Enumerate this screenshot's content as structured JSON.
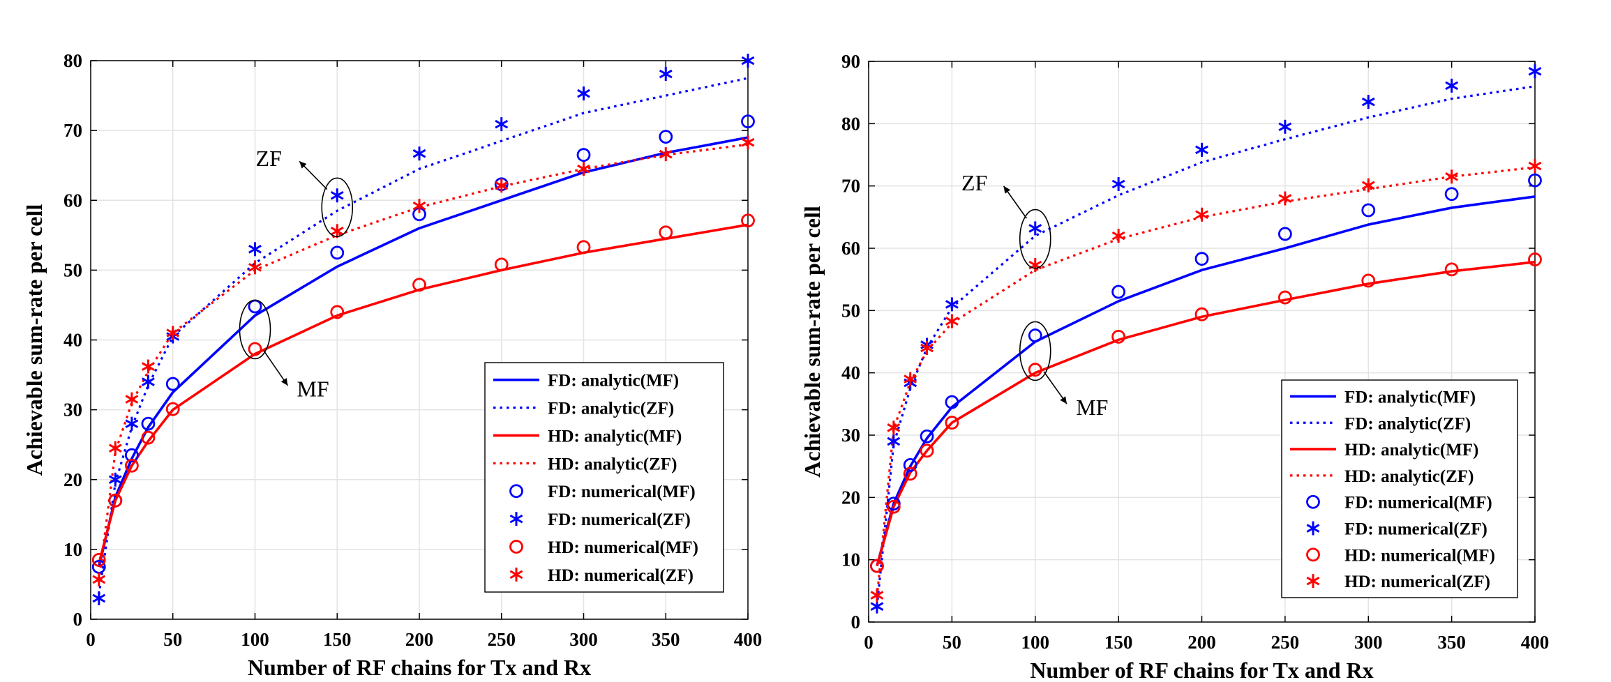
{
  "colors": {
    "fd": "#0000ff",
    "hd": "#ff0000",
    "grid": "#e3e3e3",
    "axis": "#000000"
  },
  "chart_data": [
    {
      "type": "line",
      "xlabel": "Number of RF chains for Tx and Rx",
      "ylabel": "Achievable sum-rate per cell",
      "xlim": [
        0,
        400
      ],
      "ylim": [
        0,
        80
      ],
      "xticks": [
        0,
        50,
        100,
        150,
        200,
        250,
        300,
        350,
        400
      ],
      "yticks": [
        0,
        10,
        20,
        30,
        40,
        50,
        60,
        70,
        80
      ],
      "grid": true,
      "legend_position": "bottom-right",
      "x_curve": [
        5,
        15,
        25,
        35,
        50,
        100,
        150,
        200,
        250,
        300,
        350,
        400
      ],
      "x_markers": [
        5,
        15,
        25,
        35,
        50,
        100,
        150,
        200,
        250,
        300,
        350,
        400
      ],
      "series": [
        {
          "name": "FD: analytic(MF)",
          "kind": "line",
          "dash": "solid",
          "color": "#0000ff",
          "values": [
            7.5,
            17.5,
            23.0,
            27.5,
            32.5,
            43.5,
            50.5,
            56.0,
            60.0,
            64.0,
            66.8,
            69.0
          ]
        },
        {
          "name": "FD: analytic(ZF)",
          "kind": "line",
          "dash": "dotted",
          "color": "#0000ff",
          "values": [
            3.5,
            19.5,
            27.5,
            33.5,
            40.5,
            51.0,
            58.5,
            64.5,
            68.5,
            72.5,
            75.0,
            77.5
          ]
        },
        {
          "name": "HD: analytic(MF)",
          "kind": "line",
          "dash": "solid",
          "color": "#ff0000",
          "values": [
            8.0,
            17.0,
            22.0,
            25.5,
            30.0,
            38.0,
            43.5,
            47.2,
            50.0,
            52.5,
            54.5,
            56.5
          ]
        },
        {
          "name": "HD: analytic(ZF)",
          "kind": "line",
          "dash": "dotted",
          "color": "#ff0000",
          "values": [
            5.5,
            24.0,
            31.0,
            35.5,
            41.0,
            50.0,
            55.0,
            59.0,
            62.0,
            64.5,
            66.5,
            68.0
          ]
        },
        {
          "name": "FD: numerical(MF)",
          "kind": "marker",
          "marker": "circle",
          "color": "#0000ff",
          "values": [
            7.5,
            17.0,
            23.5,
            28.0,
            33.7,
            44.8,
            52.5,
            58.0,
            62.3,
            66.5,
            69.1,
            71.3
          ]
        },
        {
          "name": "FD: numerical(ZF)",
          "kind": "marker",
          "marker": "star",
          "color": "#0000ff",
          "values": [
            3.0,
            20.0,
            28.0,
            34.0,
            40.5,
            53.0,
            60.7,
            66.7,
            70.9,
            75.3,
            78.1,
            80.0
          ]
        },
        {
          "name": "HD: numerical(MF)",
          "kind": "marker",
          "marker": "circle",
          "color": "#ff0000",
          "values": [
            8.5,
            17.0,
            22.0,
            26.0,
            30.1,
            38.7,
            44.0,
            47.9,
            50.8,
            53.3,
            55.4,
            57.1
          ]
        },
        {
          "name": "HD: numerical(ZF)",
          "kind": "marker",
          "marker": "star",
          "color": "#ff0000",
          "values": [
            5.7,
            24.5,
            31.5,
            36.2,
            41.0,
            50.4,
            55.6,
            59.2,
            62.1,
            64.5,
            66.6,
            68.3
          ]
        }
      ],
      "annotations": [
        {
          "text": "ZF",
          "ellipse_at": [
            150,
            59
          ],
          "label_at": [
            118,
            66
          ]
        },
        {
          "text": "MF",
          "ellipse_at": [
            100,
            41.5
          ],
          "label_at": [
            128,
            33
          ]
        }
      ]
    },
    {
      "type": "line",
      "xlabel": "Number of RF chains for Tx and Rx",
      "ylabel": "Achievable sum-rate per cell",
      "xlim": [
        0,
        400
      ],
      "ylim": [
        0,
        90
      ],
      "xticks": [
        0,
        50,
        100,
        150,
        200,
        250,
        300,
        350,
        400
      ],
      "yticks": [
        0,
        10,
        20,
        30,
        40,
        50,
        60,
        70,
        80,
        90
      ],
      "grid": true,
      "legend_position": "bottom-right",
      "x_curve": [
        5,
        15,
        25,
        35,
        50,
        100,
        150,
        200,
        250,
        300,
        350,
        400
      ],
      "x_markers": [
        5,
        15,
        25,
        35,
        50,
        100,
        150,
        200,
        250,
        300,
        350,
        400
      ],
      "series": [
        {
          "name": "FD: analytic(MF)",
          "kind": "line",
          "dash": "solid",
          "color": "#0000ff",
          "values": [
            9.0,
            19.0,
            25.0,
            29.5,
            34.5,
            45.0,
            51.5,
            56.5,
            60.0,
            63.8,
            66.5,
            68.3
          ]
        },
        {
          "name": "FD: analytic(ZF)",
          "kind": "line",
          "dash": "dotted",
          "color": "#0000ff",
          "values": [
            2.5,
            28.5,
            37.5,
            44.0,
            50.5,
            62.0,
            68.5,
            73.8,
            77.5,
            81.0,
            84.0,
            86.0
          ]
        },
        {
          "name": "HD: analytic(MF)",
          "kind": "line",
          "dash": "solid",
          "color": "#ff0000",
          "values": [
            9.0,
            18.5,
            24.0,
            27.5,
            32.0,
            40.0,
            45.3,
            49.0,
            51.7,
            54.3,
            56.3,
            57.8
          ]
        },
        {
          "name": "HD: analytic(ZF)",
          "kind": "line",
          "dash": "dotted",
          "color": "#ff0000",
          "values": [
            4.0,
            31.0,
            38.5,
            43.5,
            48.0,
            56.5,
            61.5,
            65.0,
            67.5,
            69.5,
            71.5,
            73.0
          ]
        },
        {
          "name": "FD: numerical(MF)",
          "kind": "marker",
          "marker": "circle",
          "color": "#0000ff",
          "values": [
            9.0,
            19.0,
            25.2,
            29.8,
            35.3,
            46.0,
            53.0,
            58.3,
            62.3,
            66.1,
            68.7,
            70.9
          ]
        },
        {
          "name": "FD: numerical(ZF)",
          "kind": "marker",
          "marker": "star",
          "color": "#0000ff",
          "values": [
            2.5,
            29.0,
            38.4,
            44.5,
            51.0,
            63.2,
            70.3,
            75.8,
            79.5,
            83.5,
            86.1,
            88.4
          ]
        },
        {
          "name": "HD: numerical(MF)",
          "kind": "marker",
          "marker": "circle",
          "color": "#ff0000",
          "values": [
            9.0,
            18.5,
            23.8,
            27.5,
            32.0,
            40.5,
            45.8,
            49.4,
            52.1,
            54.8,
            56.6,
            58.2
          ]
        },
        {
          "name": "HD: numerical(ZF)",
          "kind": "marker",
          "marker": "star",
          "color": "#ff0000",
          "values": [
            4.3,
            31.2,
            39.0,
            44.0,
            48.3,
            57.3,
            62.0,
            65.4,
            68.0,
            70.1,
            71.5,
            73.2
          ]
        }
      ],
      "annotations": [
        {
          "text": "ZF",
          "ellipse_at": [
            100,
            61.5
          ],
          "label_at": [
            73,
            70.5
          ]
        },
        {
          "text": "MF",
          "ellipse_at": [
            100,
            43.5
          ],
          "label_at": [
            127,
            34.5
          ]
        }
      ]
    }
  ]
}
